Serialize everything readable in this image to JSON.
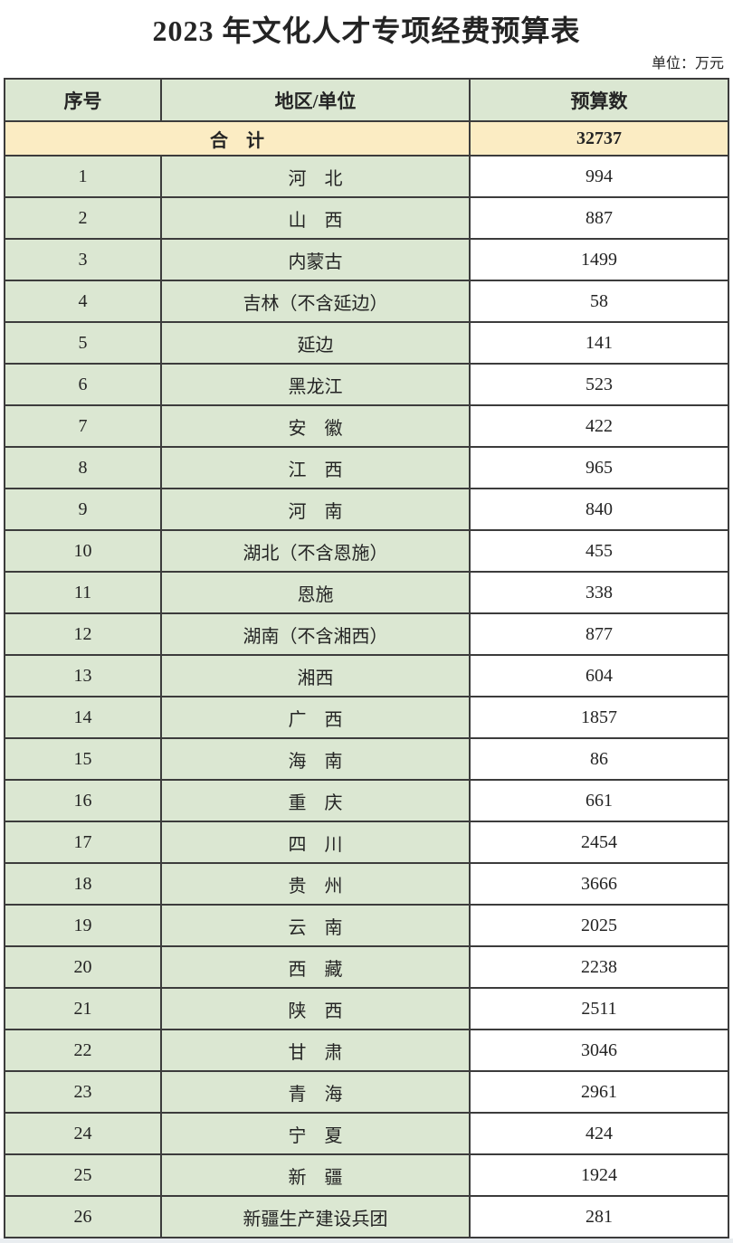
{
  "title": "2023 年文化人才专项经费预算表",
  "unit_note": "单位：万元",
  "colors": {
    "cell_green": "#dbe7d2",
    "total_yellow": "#fbecc3",
    "grid_line": "#3c3c3c",
    "budget_cell_white": "#ffffff"
  },
  "table": {
    "columns": {
      "no": "序号",
      "region": "地区/单位",
      "budget": "预算数"
    },
    "total_row": {
      "label": "合　计",
      "value": "32737"
    },
    "rows": [
      {
        "no": "1",
        "region": "河　北",
        "budget": "994"
      },
      {
        "no": "2",
        "region": "山　西",
        "budget": "887"
      },
      {
        "no": "3",
        "region": "内蒙古",
        "budget": "1499"
      },
      {
        "no": "4",
        "region": "吉林（不含延边）",
        "budget": "58"
      },
      {
        "no": "5",
        "region": "延边",
        "budget": "141"
      },
      {
        "no": "6",
        "region": "黑龙江",
        "budget": "523"
      },
      {
        "no": "7",
        "region": "安　徽",
        "budget": "422"
      },
      {
        "no": "8",
        "region": "江　西",
        "budget": "965"
      },
      {
        "no": "9",
        "region": "河　南",
        "budget": "840"
      },
      {
        "no": "10",
        "region": "湖北（不含恩施）",
        "budget": "455"
      },
      {
        "no": "11",
        "region": "恩施",
        "budget": "338"
      },
      {
        "no": "12",
        "region": "湖南（不含湘西）",
        "budget": "877"
      },
      {
        "no": "13",
        "region": "湘西",
        "budget": "604"
      },
      {
        "no": "14",
        "region": "广　西",
        "budget": "1857"
      },
      {
        "no": "15",
        "region": "海　南",
        "budget": "86"
      },
      {
        "no": "16",
        "region": "重　庆",
        "budget": "661"
      },
      {
        "no": "17",
        "region": "四　川",
        "budget": "2454"
      },
      {
        "no": "18",
        "region": "贵　州",
        "budget": "3666"
      },
      {
        "no": "19",
        "region": "云　南",
        "budget": "2025"
      },
      {
        "no": "20",
        "region": "西　藏",
        "budget": "2238"
      },
      {
        "no": "21",
        "region": "陕　西",
        "budget": "2511"
      },
      {
        "no": "22",
        "region": "甘　肃",
        "budget": "3046"
      },
      {
        "no": "23",
        "region": "青　海",
        "budget": "2961"
      },
      {
        "no": "24",
        "region": "宁　夏",
        "budget": "424"
      },
      {
        "no": "25",
        "region": "新　疆",
        "budget": "1924"
      },
      {
        "no": "26",
        "region": "新疆生产建设兵团",
        "budget": "281"
      }
    ]
  }
}
